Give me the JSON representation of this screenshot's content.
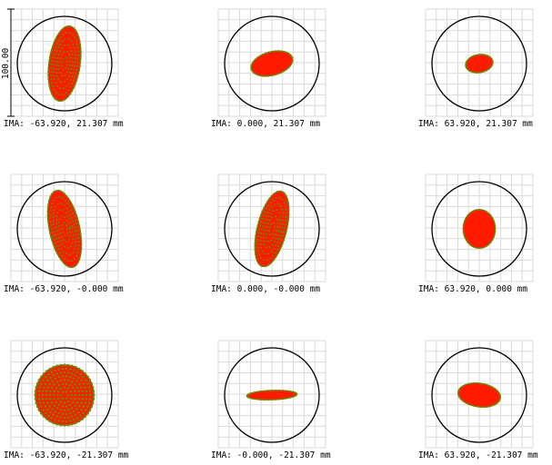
{
  "scale_bar": {
    "label": "100.00"
  },
  "panels": [
    {
      "row": 0,
      "col": 0,
      "label": "IMA: -63.920, 21.307 mm",
      "spot": {
        "rx": 0.33,
        "ry": 0.8,
        "tilt": 8,
        "pattern": "rings"
      }
    },
    {
      "row": 0,
      "col": 1,
      "label": "IMA: 0.000, 21.307 mm",
      "spot": {
        "rx": 0.45,
        "ry": 0.25,
        "tilt": -15,
        "pattern": "solid"
      }
    },
    {
      "row": 0,
      "col": 2,
      "label": "IMA: 63.920, 21.307 mm",
      "spot": {
        "rx": 0.29,
        "ry": 0.19,
        "tilt": -10,
        "pattern": "solid"
      }
    },
    {
      "row": 1,
      "col": 0,
      "label": "IMA: -63.920, -0.000 mm",
      "spot": {
        "rx": 0.32,
        "ry": 0.83,
        "tilt": -12,
        "pattern": "rings"
      }
    },
    {
      "row": 1,
      "col": 1,
      "label": "IMA: 0.000, -0.000 mm",
      "spot": {
        "rx": 0.31,
        "ry": 0.82,
        "tilt": 14,
        "pattern": "rings"
      }
    },
    {
      "row": 1,
      "col": 2,
      "label": "IMA: 63.920, 0.000 mm",
      "spot": {
        "rx": 0.34,
        "ry": 0.41,
        "tilt": 0,
        "pattern": "solid"
      }
    },
    {
      "row": 2,
      "col": 0,
      "label": "IMA: -63.920, -21.307 mm",
      "spot": {
        "rx": 0.62,
        "ry": 0.64,
        "tilt": 0,
        "pattern": "dots"
      }
    },
    {
      "row": 2,
      "col": 1,
      "label": "IMA: -0.000, -21.307 mm",
      "spot": {
        "rx": 0.53,
        "ry": 0.1,
        "tilt": -2,
        "pattern": "solid"
      }
    },
    {
      "row": 2,
      "col": 2,
      "label": "IMA: 63.920, -21.307 mm",
      "spot": {
        "rx": 0.45,
        "ry": 0.25,
        "tilt": 8,
        "pattern": "solid"
      }
    }
  ],
  "colors": {
    "grid": "#d9d9d9",
    "circle": "#000000",
    "spot_fill": "#ff1a00",
    "spot_marker": "#6c8a00",
    "text": "#000000"
  }
}
